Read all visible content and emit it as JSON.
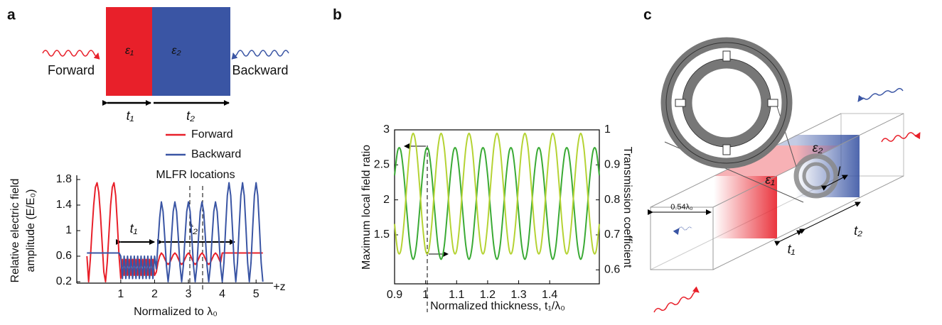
{
  "panel_labels": [
    "a",
    "b",
    "c"
  ],
  "diagram_a": {
    "materials": [
      "ε₁",
      "ε₂"
    ],
    "waves": [
      "Forward",
      "Backward"
    ],
    "thicknesses": [
      "t₁",
      "t₂"
    ]
  },
  "chart_data": [
    {
      "type": "line",
      "xlabel": "Normalized to λ₀",
      "ylabel": [
        "Relative electric field",
        "amplitude (E/E₀)"
      ],
      "annotations": [
        "MLFR locations",
        "t₁",
        "t₂",
        "+z"
      ],
      "xlim": [
        -0.3,
        5.5
      ],
      "ylim": [
        0.2,
        1.8
      ],
      "xticks": [
        1,
        2,
        3,
        4,
        5
      ],
      "yticks": [
        0.2,
        0.6,
        1,
        1.4,
        1.8
      ],
      "x": [
        0,
        0.05,
        0.1,
        0.15,
        0.2,
        0.25,
        0.3,
        0.35,
        0.4,
        0.45,
        0.5,
        0.55,
        0.6,
        0.65,
        0.7,
        0.75,
        0.8,
        0.85,
        0.9,
        0.95,
        1,
        1.05,
        1.1,
        1.15,
        1.2,
        1.25,
        1.3,
        1.35,
        1.4,
        1.45,
        1.5,
        1.55,
        1.6,
        1.65,
        1.7,
        1.75,
        1.8,
        1.85,
        1.9,
        1.95,
        2,
        2.05,
        2.1,
        2.15,
        2.2,
        2.25,
        2.3,
        2.35,
        2.4,
        2.45,
        2.5,
        2.55,
        2.6,
        2.65,
        2.7,
        2.75,
        2.8,
        2.85,
        2.9,
        2.95,
        3,
        3.05,
        3.1,
        3.15,
        3.2,
        3.25,
        3.3,
        3.35,
        3.4,
        3.45,
        3.5,
        3.55,
        3.6,
        3.65,
        3.7,
        3.75,
        3.8,
        3.85,
        3.9,
        3.95,
        4,
        4.05,
        4.1,
        4.15,
        4.2,
        4.25,
        4.3,
        4.35,
        4.4,
        4.45,
        4.5,
        4.55,
        4.6,
        4.65,
        4.7,
        4.75,
        4.8,
        4.85,
        4.9,
        4.95,
        5,
        5.05,
        5.1,
        5.15,
        5.2
      ],
      "series": [
        {
          "name": "Forward",
          "color": "#e8202a",
          "values": [
            0.6,
            0.2,
            0.55,
            1,
            1.4,
            1.68,
            1.75,
            1.6,
            1.25,
            0.8,
            0.35,
            0.2,
            0.5,
            0.95,
            1.4,
            1.68,
            1.75,
            1.55,
            1.1,
            0.6,
            0.25,
            0.55,
            0.3,
            0.55,
            0.3,
            0.55,
            0.3,
            0.55,
            0.3,
            0.55,
            0.3,
            0.55,
            0.3,
            0.55,
            0.3,
            0.55,
            0.3,
            0.55,
            0.3,
            0.55,
            0.3,
            0.35,
            0.5,
            0.6,
            0.65,
            0.62,
            0.56,
            0.5,
            0.47,
            0.5,
            0.56,
            0.62,
            0.65,
            0.62,
            0.56,
            0.5,
            0.47,
            0.5,
            0.56,
            0.62,
            0.65,
            0.62,
            0.56,
            0.5,
            0.47,
            0.5,
            0.56,
            0.62,
            0.65,
            0.62,
            0.56,
            0.5,
            0.47,
            0.5,
            0.56,
            0.62,
            0.65,
            0.62,
            0.56,
            0.5,
            0.65,
            0.65,
            0.65,
            0.65,
            0.65,
            0.65,
            0.65,
            0.65,
            0.65,
            0.65,
            0.65,
            0.65,
            0.65,
            0.65,
            0.65,
            0.65,
            0.65,
            0.65,
            0.65,
            0.65,
            0.65,
            0.65,
            0.65,
            0.65,
            0.65
          ]
        },
        {
          "name": "Backward",
          "color": "#3a55a4",
          "values": [
            0.65,
            0.65,
            0.65,
            0.65,
            0.65,
            0.65,
            0.65,
            0.65,
            0.65,
            0.65,
            0.65,
            0.65,
            0.65,
            0.65,
            0.65,
            0.65,
            0.65,
            0.65,
            0.65,
            0.65,
            0.6,
            0.25,
            0.6,
            0.25,
            0.6,
            0.25,
            0.6,
            0.25,
            0.6,
            0.25,
            0.6,
            0.25,
            0.6,
            0.25,
            0.6,
            0.25,
            0.6,
            0.25,
            0.6,
            0.25,
            0.6,
            0.4,
            0.8,
            1.2,
            1.45,
            1.3,
            0.9,
            0.45,
            0.2,
            0.45,
            0.9,
            1.3,
            1.45,
            1.3,
            0.9,
            0.45,
            0.2,
            0.45,
            0.9,
            1.3,
            1.45,
            1.3,
            0.9,
            0.45,
            0.2,
            0.45,
            0.9,
            1.3,
            1.45,
            1.3,
            0.9,
            0.45,
            0.2,
            0.45,
            0.9,
            1.3,
            1.45,
            1.3,
            0.9,
            0.45,
            0.2,
            0.5,
            1.05,
            1.55,
            1.75,
            1.55,
            1.05,
            0.5,
            0.2,
            0.5,
            1.05,
            1.55,
            1.75,
            1.55,
            1.05,
            0.5,
            0.2,
            0.5,
            1.05,
            1.55,
            1.75,
            1.55,
            1.05,
            0.5,
            0.2
          ]
        }
      ]
    },
    {
      "type": "line",
      "xlabel": "Normalized thickness, t₁/λ₀",
      "ylabel": "Maximum local field ratio",
      "y2label": "Transmission coefficient",
      "xlim": [
        0.9,
        1.56
      ],
      "ylim": [
        0.8,
        3
      ],
      "y2lim": [
        0.56,
        1
      ],
      "xticks": [
        0.9,
        1,
        1.1,
        1.2,
        1.3,
        1.4
      ],
      "yticks": [
        1.5,
        2,
        2.5,
        3
      ],
      "y2ticks": [
        0.6,
        0.7,
        0.8,
        0.9,
        1
      ],
      "x": [
        0.9,
        0.91,
        0.92,
        0.93,
        0.94,
        0.95,
        0.96,
        0.97,
        0.98,
        0.99,
        1,
        1.01,
        1.02,
        1.03,
        1.04,
        1.05,
        1.06,
        1.07,
        1.08,
        1.09,
        1.1,
        1.11,
        1.12,
        1.13,
        1.14,
        1.15,
        1.16,
        1.17,
        1.18,
        1.19,
        1.2,
        1.21,
        1.22,
        1.23,
        1.24,
        1.25,
        1.26,
        1.27,
        1.28,
        1.29,
        1.3,
        1.31,
        1.32,
        1.33,
        1.34,
        1.35,
        1.36,
        1.37,
        1.38,
        1.39,
        1.4,
        1.41,
        1.42,
        1.43,
        1.44,
        1.45,
        1.46,
        1.47,
        1.48,
        1.49,
        1.5,
        1.51,
        1.52,
        1.53,
        1.54,
        1.55,
        1.56
      ],
      "series": [
        {
          "color": "#3aaa35",
          "values": [
            2.35,
            2.702,
            2.702,
            2.35,
            1.811,
            1.337,
            1.15,
            1.337,
            1.811,
            2.35,
            2.702,
            2.702,
            2.35,
            1.811,
            1.337,
            1.15,
            1.337,
            1.811,
            2.35,
            2.702,
            2.702,
            2.35,
            1.811,
            1.337,
            1.15,
            1.337,
            1.811,
            2.35,
            2.702,
            2.702,
            2.35,
            1.811,
            1.337,
            1.15,
            1.337,
            1.811,
            2.35,
            2.702,
            2.702,
            2.35,
            1.811,
            1.337,
            1.15,
            1.337,
            1.811,
            2.35,
            2.702,
            2.702,
            2.35,
            1.811,
            1.337,
            1.15,
            1.337,
            1.811,
            2.35,
            2.702,
            2.702,
            2.35,
            1.811,
            1.337,
            1.15,
            1.337,
            1.811,
            2.35,
            2.702,
            2.702,
            2.35
          ]
        },
        {
          "color": "#b5d334",
          "axis": "y2",
          "values": [
            0.731,
            0.655,
            0.655,
            0.731,
            0.848,
            0.95,
            0.99,
            0.95,
            0.848,
            0.731,
            0.655,
            0.655,
            0.731,
            0.848,
            0.95,
            0.99,
            0.95,
            0.848,
            0.731,
            0.655,
            0.655,
            0.731,
            0.848,
            0.95,
            0.99,
            0.95,
            0.848,
            0.731,
            0.655,
            0.655,
            0.731,
            0.848,
            0.95,
            0.99,
            0.95,
            0.848,
            0.731,
            0.655,
            0.655,
            0.731,
            0.848,
            0.95,
            0.99,
            0.95,
            0.848,
            0.731,
            0.655,
            0.655,
            0.731,
            0.848,
            0.95,
            0.99,
            0.95,
            0.848,
            0.731,
            0.655,
            0.655,
            0.731,
            0.848,
            0.95,
            0.99,
            0.95,
            0.848,
            0.731,
            0.655,
            0.655,
            0.731
          ]
        }
      ]
    }
  ],
  "diagram_c": {
    "materials": [
      "ε₂",
      "ε₁"
    ],
    "dimensions": [
      "l",
      "0.54λ₀",
      "t₁",
      "t₂"
    ]
  }
}
